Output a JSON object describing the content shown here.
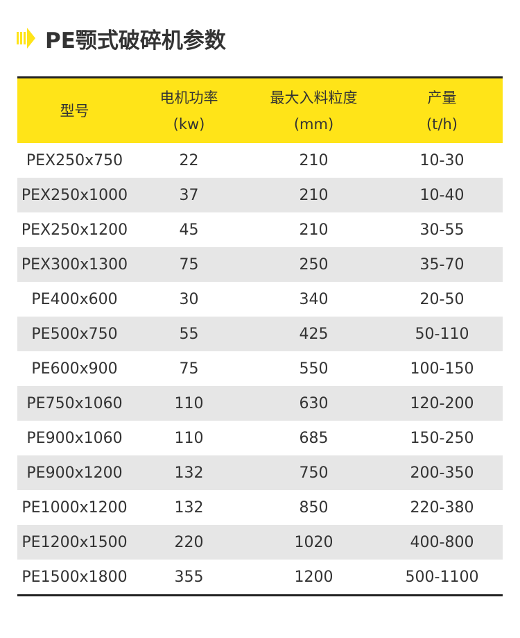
{
  "title": "PE颚式破碎机参数",
  "colors": {
    "accent": "#ffe418",
    "text": "#333333",
    "stripe": "#e6e6e6"
  },
  "icons": {
    "title": "arrow-right-icon"
  },
  "table": {
    "headers": [
      {
        "label": "型号",
        "unit": ""
      },
      {
        "label": "电机功率",
        "unit": "(kw)"
      },
      {
        "label": "最大入料粒度",
        "unit": "(mm)"
      },
      {
        "label": "产量",
        "unit": "(t/h)"
      }
    ],
    "rows": [
      [
        "PEX250x750",
        "22",
        "210",
        "10-30"
      ],
      [
        "PEX250x1000",
        "37",
        "210",
        "10-40"
      ],
      [
        "PEX250x1200",
        "45",
        "210",
        "30-55"
      ],
      [
        "PEX300x1300",
        "75",
        "250",
        "35-70"
      ],
      [
        "PE400x600",
        "30",
        "340",
        "20-50"
      ],
      [
        "PE500x750",
        "55",
        "425",
        "50-110"
      ],
      [
        "PE600x900",
        "75",
        "550",
        "100-150"
      ],
      [
        "PE750x1060",
        "110",
        "630",
        "120-200"
      ],
      [
        "PE900x1060",
        "110",
        "685",
        "150-250"
      ],
      [
        "PE900x1200",
        "132",
        "750",
        "200-350"
      ],
      [
        "PE1000x1200",
        "132",
        "850",
        "220-380"
      ],
      [
        "PE1200x1500",
        "220",
        "1020",
        "400-800"
      ],
      [
        "PE1500x1800",
        "355",
        "1200",
        "500-1100"
      ]
    ]
  }
}
